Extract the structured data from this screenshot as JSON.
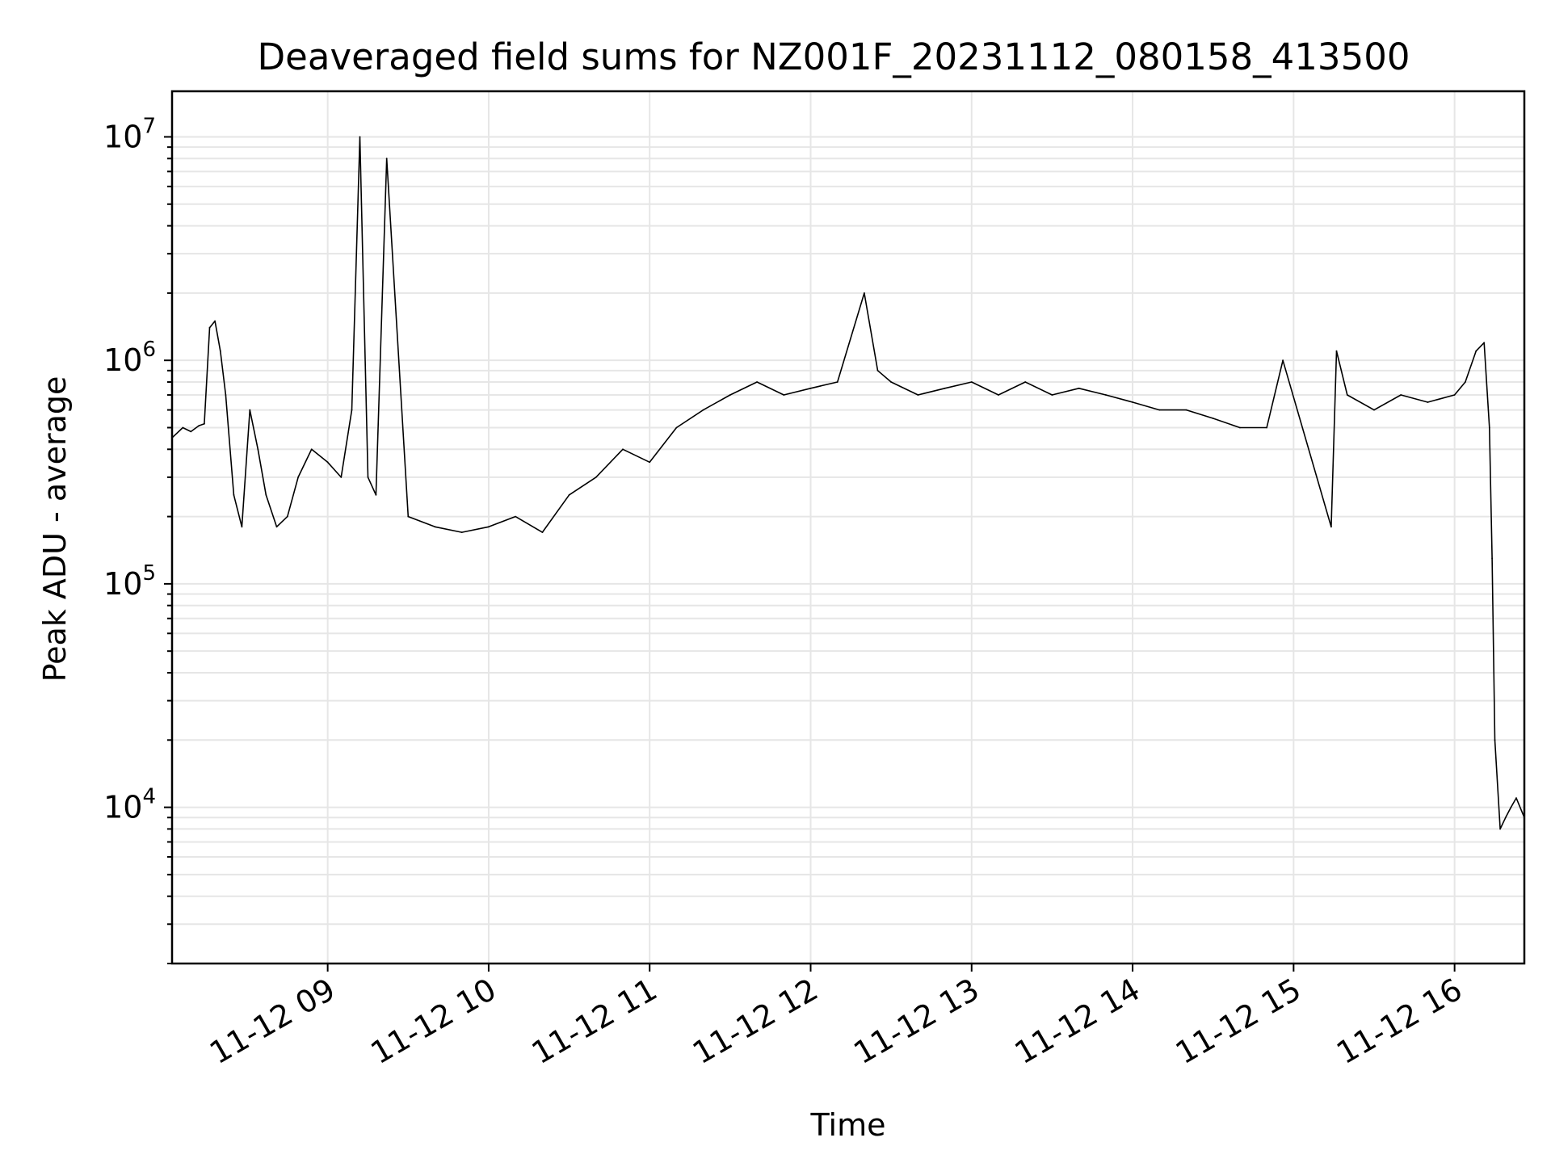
{
  "chart_data": {
    "type": "line",
    "title": "Deaveraged field sums for NZ001F_20231112_080158_413500",
    "xlabel": "Time",
    "ylabel": "Peak ADU - average",
    "yscale": "log",
    "ylim": [
      2000,
      16000000
    ],
    "xlim": [
      "2023-11-12 08:02",
      "2023-11-12 16:26"
    ],
    "grid": true,
    "x_tick_labels": [
      "11-12 09",
      "11-12 10",
      "11-12 11",
      "11-12 12",
      "11-12 13",
      "11-12 14",
      "11-12 15",
      "11-12 16"
    ],
    "y_tick_labels": [
      {
        "base": "10",
        "exp": "4",
        "value": 10000
      },
      {
        "base": "10",
        "exp": "5",
        "value": 100000
      },
      {
        "base": "10",
        "exp": "6",
        "value": 1000000
      },
      {
        "base": "10",
        "exp": "7",
        "value": 10000000
      }
    ],
    "line_color": "#000000",
    "grid_color": "#e6e6e6",
    "series": [
      {
        "x": [
          "08:02",
          "08:06",
          "08:09",
          "08:12",
          "08:14",
          "08:16",
          "08:18",
          "08:20",
          "08:22",
          "08:25",
          "08:28",
          "08:31",
          "08:34",
          "08:37",
          "08:41",
          "08:45",
          "08:49",
          "08:54",
          "09:00",
          "09:05",
          "09:09",
          "09:12",
          "09:15",
          "09:18",
          "09:22",
          "09:30",
          "09:40",
          "09:50",
          "10:00",
          "10:10",
          "10:20",
          "10:30",
          "10:40",
          "10:50",
          "11:00",
          "11:10",
          "11:20",
          "11:30",
          "11:40",
          "11:50",
          "12:00",
          "12:10",
          "12:20",
          "12:25",
          "12:30",
          "12:40",
          "12:50",
          "13:00",
          "13:10",
          "13:20",
          "13:30",
          "13:40",
          "13:50",
          "14:00",
          "14:10",
          "14:20",
          "14:30",
          "14:40",
          "14:50",
          "14:56",
          "15:14",
          "15:16",
          "15:20",
          "15:30",
          "15:40",
          "15:50",
          "16:00",
          "16:04",
          "16:08",
          "16:11",
          "16:13",
          "16:14",
          "16:15",
          "16:17",
          "16:19",
          "16:21",
          "16:23",
          "16:26"
        ],
        "y": [
          450000,
          500000,
          480000,
          510000,
          520000,
          1400000,
          1500000,
          1100000,
          700000,
          250000,
          180000,
          600000,
          400000,
          250000,
          180000,
          200000,
          300000,
          400000,
          350000,
          300000,
          600000,
          10000000,
          300000,
          250000,
          8000000,
          200000,
          180000,
          170000,
          180000,
          200000,
          170000,
          250000,
          300000,
          400000,
          350000,
          500000,
          600000,
          700000,
          800000,
          700000,
          750000,
          800000,
          2000000,
          900000,
          800000,
          700000,
          750000,
          800000,
          700000,
          800000,
          700000,
          750000,
          700000,
          650000,
          600000,
          600000,
          550000,
          500000,
          500000,
          1000000,
          180000,
          1100000,
          700000,
          600000,
          700000,
          650000,
          700000,
          800000,
          1100000,
          1200000,
          500000,
          130000,
          20000,
          8000,
          9000,
          10000,
          11000,
          9000
        ]
      }
    ]
  }
}
